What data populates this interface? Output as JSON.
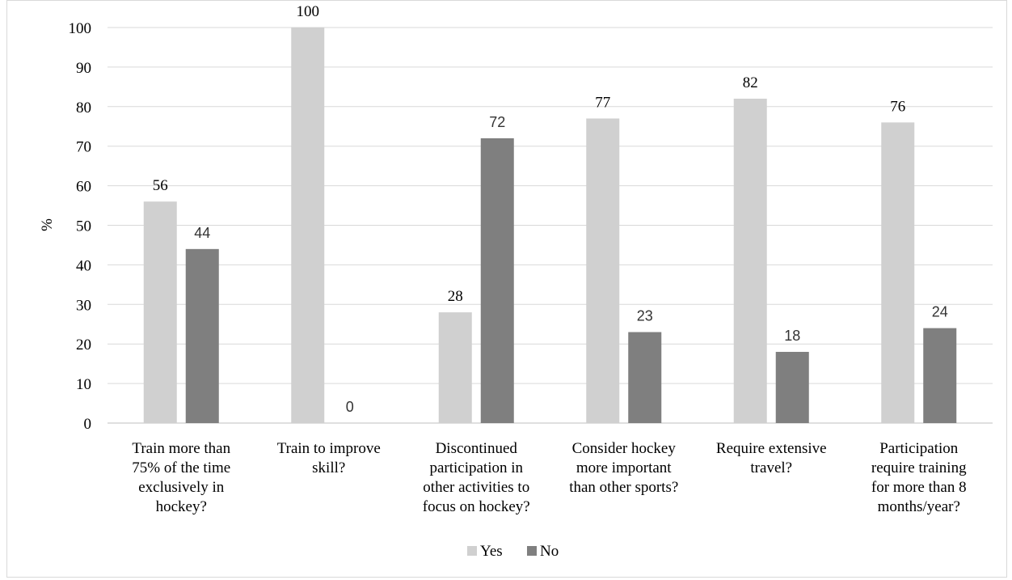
{
  "chart_data": {
    "type": "bar",
    "title": "",
    "xlabel": "",
    "ylabel": "%",
    "ylim": [
      0,
      100
    ],
    "yticks": [
      0,
      10,
      20,
      30,
      40,
      50,
      60,
      70,
      80,
      90,
      100
    ],
    "grid": true,
    "legend_position": "bottom",
    "categories": [
      [
        "Train more than",
        "75% of the time",
        "exclusively in",
        "hockey?"
      ],
      [
        "Train to improve",
        "skill?"
      ],
      [
        "Discontinued",
        "participation in",
        "other activities to",
        "focus on hockey?"
      ],
      [
        "Consider hockey",
        "more important",
        "than other sports?"
      ],
      [
        "Require extensive",
        "travel?"
      ],
      [
        "Participation",
        "require training",
        "for more than 8",
        "months/year?"
      ]
    ],
    "series": [
      {
        "name": "Yes",
        "color": "#d0d0d0",
        "values": [
          56,
          100,
          28,
          77,
          82,
          76
        ]
      },
      {
        "name": "No",
        "color": "#7f7f7f",
        "values": [
          44,
          0,
          72,
          23,
          18,
          24
        ]
      }
    ]
  }
}
